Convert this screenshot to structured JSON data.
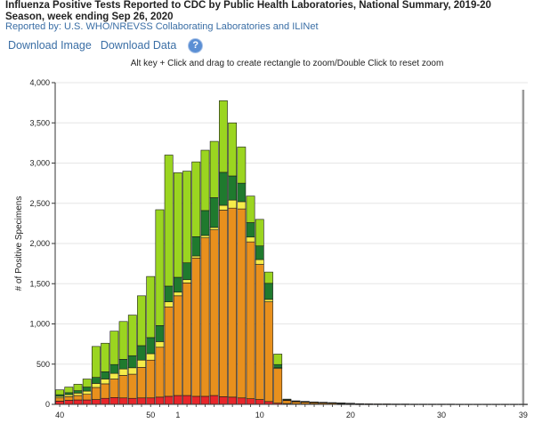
{
  "header": {
    "title": "Influenza Positive Tests Reported to CDC by Public Health Laboratories, National Summary, 2019-20 Season, week ending Sep 26, 2020",
    "reported_by": "Reported by: U.S. WHO/NREVSS Collaborating Laboratories and ILINet"
  },
  "toolbar": {
    "download_image": "Download Image",
    "download_data": "Download Data",
    "help_icon": "?"
  },
  "instructions": "Alt key + Click and drag to create rectangle to zoom/Double Click to reset zoom",
  "colors": {
    "red": "#e8262b",
    "orange": "#e8901d",
    "yellow": "#f5ec4a",
    "dark_green": "#1f7a2e",
    "light_green": "#9bd520",
    "marker": "#999999"
  },
  "chart_data": {
    "type": "bar",
    "stacked": true,
    "ylabel": "# of Positive Specimens",
    "ylim": [
      0,
      4000
    ],
    "yticks": [
      "0",
      "500",
      "1,000",
      "1,500",
      "2,000",
      "2,500",
      "3,000",
      "3,500",
      "4,000"
    ],
    "xtick_labels": [
      "40",
      "50",
      "1",
      "10",
      "20",
      "30",
      "39"
    ],
    "weeks": [
      40,
      41,
      42,
      43,
      44,
      45,
      46,
      47,
      48,
      49,
      50,
      51,
      52,
      1,
      2,
      3,
      4,
      5,
      6,
      7,
      8,
      9,
      10,
      11,
      12,
      13,
      14,
      15,
      16,
      17,
      18,
      19,
      20,
      21,
      22,
      23,
      24,
      25,
      26,
      27,
      28,
      29,
      30,
      31,
      32,
      33,
      34,
      35,
      36,
      37,
      38,
      39
    ],
    "series": [
      {
        "color": "red",
        "values": [
          40,
          50,
          55,
          55,
          60,
          75,
          85,
          80,
          75,
          80,
          80,
          90,
          100,
          110,
          110,
          100,
          100,
          110,
          95,
          90,
          80,
          70,
          60,
          35,
          15,
          10,
          5,
          5,
          5,
          3,
          3,
          2,
          2,
          1,
          1,
          1,
          1,
          1,
          1,
          1,
          1,
          1,
          1,
          1,
          1,
          1,
          1,
          1,
          1,
          1,
          1,
          1
        ]
      },
      {
        "color": "orange",
        "values": [
          40,
          45,
          55,
          70,
          150,
          180,
          230,
          280,
          300,
          380,
          470,
          620,
          1110,
          1240,
          1400,
          1720,
          1970,
          2060,
          2320,
          2350,
          2350,
          1950,
          1680,
          1240,
          430,
          40,
          30,
          25,
          20,
          18,
          15,
          12,
          10,
          8,
          6,
          5,
          5,
          4,
          4,
          3,
          3,
          3,
          3,
          3,
          2,
          2,
          2,
          2,
          2,
          2,
          2,
          2
        ]
      },
      {
        "color": "yellow",
        "values": [
          20,
          25,
          30,
          40,
          50,
          60,
          70,
          80,
          80,
          90,
          80,
          70,
          65,
          45,
          40,
          25,
          30,
          30,
          60,
          100,
          90,
          60,
          60,
          30,
          10,
          2,
          1,
          1,
          1,
          1,
          1,
          1,
          0,
          0,
          0,
          0,
          0,
          0,
          0,
          0,
          0,
          0,
          0,
          0,
          0,
          0,
          0,
          0,
          0,
          0,
          0,
          0
        ]
      },
      {
        "color": "dark_green",
        "values": [
          20,
          25,
          30,
          50,
          75,
          90,
          110,
          120,
          150,
          180,
          200,
          200,
          195,
          185,
          210,
          240,
          310,
          370,
          410,
          300,
          230,
          180,
          170,
          200,
          40,
          5,
          3,
          2,
          2,
          2,
          1,
          1,
          1,
          0,
          0,
          0,
          0,
          0,
          0,
          0,
          0,
          0,
          0,
          0,
          0,
          0,
          0,
          0,
          0,
          0,
          0,
          0
        ]
      },
      {
        "color": "light_green",
        "values": [
          60,
          70,
          80,
          100,
          385,
          355,
          415,
          470,
          505,
          620,
          760,
          1440,
          1630,
          1300,
          1140,
          930,
          750,
          700,
          890,
          660,
          450,
          330,
          330,
          140,
          130,
          8,
          5,
          4,
          2,
          2,
          1,
          1,
          1,
          0,
          0,
          0,
          0,
          0,
          0,
          0,
          0,
          0,
          0,
          0,
          0,
          0,
          0,
          0,
          0,
          0,
          0,
          0
        ]
      }
    ],
    "marker_week": 39,
    "grid": "horizontal",
    "legend": "none"
  }
}
